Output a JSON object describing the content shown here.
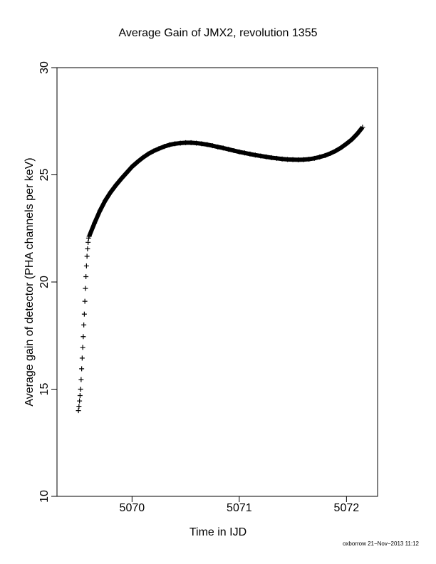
{
  "chart_data": {
    "type": "scatter",
    "title": "Average Gain of JMX2, revolution 1355",
    "x_label": "Time in IJD",
    "y_label": "Average gain of detector (PHA channels per keV)",
    "footer": "oxborrow 21−Nov−2013 11:12",
    "marker": "+",
    "color": "#000000",
    "xlim": [
      5069.3,
      5072.29
    ],
    "xticks": [
      5070,
      5071,
      5072
    ],
    "ylim": [
      10,
      30
    ],
    "yticks": [
      10,
      15,
      20,
      25,
      30
    ],
    "x": [
      5069.5,
      5069.505,
      5069.51,
      5069.515,
      5069.52,
      5069.525,
      5069.53,
      5069.535,
      5069.54,
      5069.545,
      5069.55,
      5069.555,
      5069.56,
      5069.565,
      5069.57,
      5069.575,
      5069.58,
      5069.585,
      5069.59,
      5069.595,
      5069.6,
      5069.65,
      5069.7,
      5069.75,
      5069.8,
      5069.85,
      5069.9,
      5069.95,
      5070.0,
      5070.05,
      5070.1,
      5070.15,
      5070.2,
      5070.25,
      5070.3,
      5070.35,
      5070.4,
      5070.45,
      5070.5,
      5070.55,
      5070.6,
      5070.65,
      5070.7,
      5070.75,
      5070.8,
      5070.85,
      5070.9,
      5070.95,
      5071.0,
      5071.05,
      5071.1,
      5071.15,
      5071.2,
      5071.25,
      5071.3,
      5071.35,
      5071.4,
      5071.45,
      5071.5,
      5071.55,
      5071.6,
      5071.65,
      5071.7,
      5071.75,
      5071.8,
      5071.85,
      5071.9,
      5071.95,
      5072.0,
      5072.05,
      5072.1,
      5072.15
    ],
    "values": [
      14.0,
      14.2,
      14.45,
      14.7,
      15.0,
      15.45,
      15.95,
      16.45,
      16.95,
      17.45,
      18.0,
      18.5,
      19.1,
      19.7,
      20.25,
      20.75,
      21.2,
      21.55,
      21.85,
      22.05,
      22.13,
      22.75,
      23.32,
      23.8,
      24.19,
      24.52,
      24.82,
      25.1,
      25.38,
      25.6,
      25.8,
      25.97,
      26.11,
      26.22,
      26.32,
      26.4,
      26.45,
      26.48,
      26.5,
      26.5,
      26.48,
      26.45,
      26.41,
      26.36,
      26.3,
      26.25,
      26.19,
      26.13,
      26.07,
      26.02,
      25.97,
      25.92,
      25.88,
      25.84,
      25.8,
      25.77,
      25.74,
      25.72,
      25.71,
      25.7,
      25.71,
      25.73,
      25.77,
      25.83,
      25.9,
      26.0,
      26.12,
      26.27,
      26.45,
      26.65,
      26.91,
      27.22
    ]
  }
}
